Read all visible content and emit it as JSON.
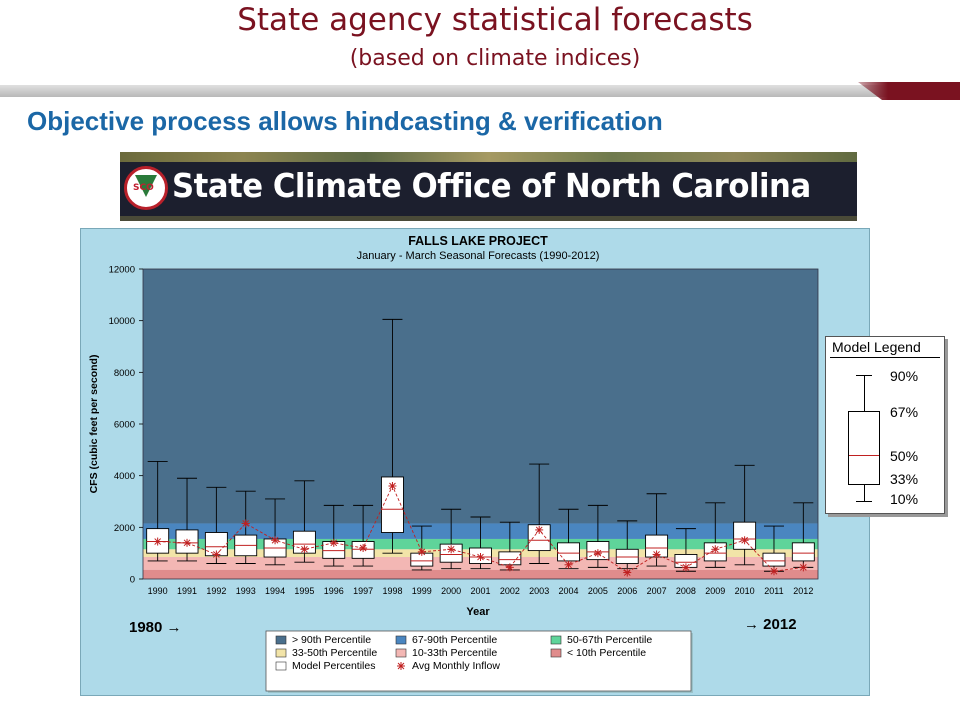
{
  "slide": {
    "title": "State agency statistical forecasts",
    "title_sub": "(based on climate indices)",
    "subtitle": "Objective process allows hindcasting & verification",
    "banner_text": "State Climate Office of North Carolina",
    "banner_logo_text": "SCO"
  },
  "range_labels": {
    "start": "1980 →",
    "end": "→ 2012"
  },
  "model_legend": {
    "title": "Model Legend",
    "labels": [
      "90%",
      "67%",
      "50%",
      "33%",
      "10%"
    ]
  },
  "colors": {
    "title": "#7a1220",
    "subtitle": "#1b67a6",
    "band_gt90": "#4a6f8c",
    "band_67_90": "#4a86c0",
    "band_50_67": "#5fd49a",
    "band_33_50": "#f2e4a8",
    "band_10_33": "#f3b7b4",
    "band_lt10": "#e08c8c",
    "avg_inflow": "#c02020"
  },
  "chart_data": {
    "type": "box",
    "title": "FALLS LAKE PROJECT",
    "subtitle": "January - March Seasonal Forecasts (1990-2012)",
    "xlabel": "Year",
    "ylabel": "CFS (cubic feet per second)",
    "ylim": [
      0,
      12000
    ],
    "yticks": [
      0,
      2000,
      4000,
      6000,
      8000,
      10000,
      12000
    ],
    "percentile_bands": [
      {
        "name": "> 90th Percentile",
        "from": 2150,
        "to": 12000,
        "color": "#4a6f8c"
      },
      {
        "name": "67-90th Percentile",
        "from": 1550,
        "to": 2150,
        "color": "#4a86c0"
      },
      {
        "name": "50-67th Percentile",
        "from": 1150,
        "to": 1550,
        "color": "#5fd49a"
      },
      {
        "name": "33-50th Percentile",
        "from": 850,
        "to": 1150,
        "color": "#f2e4a8"
      },
      {
        "name": "10-33th Percentile",
        "from": 350,
        "to": 850,
        "color": "#f3b7b4"
      },
      {
        "name": "< 10th Percentile",
        "from": 0,
        "to": 350,
        "color": "#e08c8c"
      }
    ],
    "categories": [
      "1990",
      "1991",
      "1992",
      "1993",
      "1994",
      "1995",
      "1996",
      "1997",
      "1998",
      "1999",
      "2000",
      "2001",
      "2002",
      "2003",
      "2004",
      "2005",
      "2006",
      "2007",
      "2008",
      "2009",
      "2010",
      "2011",
      "2012"
    ],
    "boxes": [
      {
        "p10": 700,
        "p33": 1000,
        "p50": 1450,
        "p67": 1950,
        "p90": 4550
      },
      {
        "p10": 700,
        "p33": 1000,
        "p50": 1400,
        "p67": 1900,
        "p90": 3900
      },
      {
        "p10": 600,
        "p33": 900,
        "p50": 1250,
        "p67": 1800,
        "p90": 3550
      },
      {
        "p10": 600,
        "p33": 900,
        "p50": 1300,
        "p67": 1700,
        "p90": 3400
      },
      {
        "p10": 550,
        "p33": 850,
        "p50": 1200,
        "p67": 1550,
        "p90": 3100
      },
      {
        "p10": 650,
        "p33": 1000,
        "p50": 1350,
        "p67": 1850,
        "p90": 3800
      },
      {
        "p10": 500,
        "p33": 800,
        "p50": 1100,
        "p67": 1450,
        "p90": 2850
      },
      {
        "p10": 500,
        "p33": 800,
        "p50": 1150,
        "p67": 1450,
        "p90": 2850
      },
      {
        "p10": 1000,
        "p33": 1800,
        "p50": 2700,
        "p67": 3950,
        "p90": 10050
      },
      {
        "p10": 350,
        "p33": 500,
        "p50": 700,
        "p67": 1000,
        "p90": 2050
      },
      {
        "p10": 400,
        "p33": 650,
        "p50": 950,
        "p67": 1350,
        "p90": 2700
      },
      {
        "p10": 400,
        "p33": 600,
        "p50": 850,
        "p67": 1200,
        "p90": 2400
      },
      {
        "p10": 350,
        "p33": 550,
        "p50": 750,
        "p67": 1050,
        "p90": 2200
      },
      {
        "p10": 600,
        "p33": 1100,
        "p50": 1500,
        "p67": 2100,
        "p90": 4450
      },
      {
        "p10": 400,
        "p33": 700,
        "p50": 1000,
        "p67": 1400,
        "p90": 2700
      },
      {
        "p10": 450,
        "p33": 750,
        "p50": 1050,
        "p67": 1450,
        "p90": 2850
      },
      {
        "p10": 400,
        "p33": 600,
        "p50": 850,
        "p67": 1150,
        "p90": 2250
      },
      {
        "p10": 500,
        "p33": 850,
        "p50": 1200,
        "p67": 1700,
        "p90": 3300
      },
      {
        "p10": 300,
        "p33": 450,
        "p50": 650,
        "p67": 950,
        "p90": 1950
      },
      {
        "p10": 450,
        "p33": 700,
        "p50": 1000,
        "p67": 1400,
        "p90": 2950
      },
      {
        "p10": 550,
        "p33": 1150,
        "p50": 1550,
        "p67": 2200,
        "p90": 4400
      },
      {
        "p10": 300,
        "p33": 500,
        "p50": 700,
        "p67": 1000,
        "p90": 2050
      },
      {
        "p10": 450,
        "p33": 700,
        "p50": 1000,
        "p67": 1400,
        "p90": 2950
      }
    ],
    "series": [
      {
        "name": "Avg Monthly Inflow",
        "values": [
          1450,
          1400,
          950,
          2150,
          1500,
          1150,
          1400,
          1200,
          3600,
          1050,
          1150,
          850,
          450,
          1900,
          550,
          1000,
          250,
          950,
          450,
          1150,
          1500,
          300,
          450
        ]
      }
    ],
    "legend": {
      "placement": "bottom",
      "entries": [
        "> 90th Percentile",
        "67-90th Percentile",
        "50-67th Percentile",
        "33-50th Percentile",
        "10-33th Percentile",
        "< 10th Percentile",
        "Model Percentiles",
        "Avg Monthly Inflow"
      ]
    }
  }
}
